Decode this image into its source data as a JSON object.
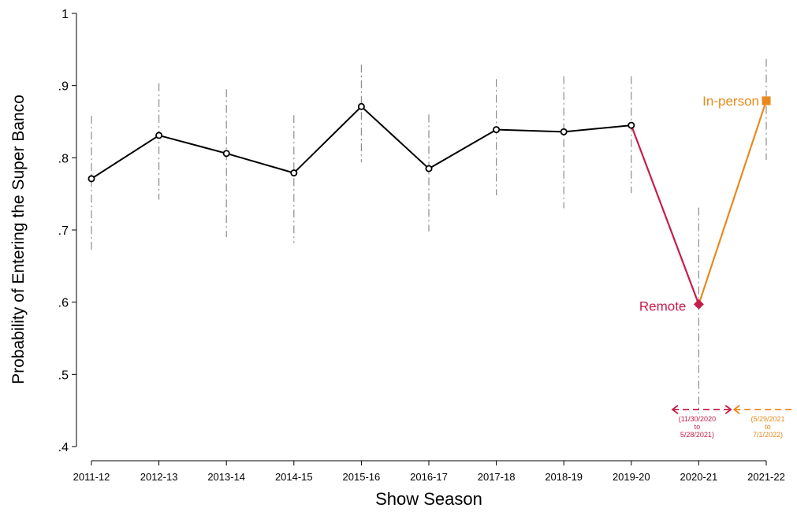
{
  "chart_data": {
    "type": "line",
    "xlabel": "Show Season",
    "ylabel": "Probability of Entering the Super Banco",
    "ylim": [
      0.4,
      1.0
    ],
    "y_ticks": [
      0.4,
      0.5,
      0.6,
      0.7,
      0.8,
      0.9,
      1.0
    ],
    "y_tick_labels": [
      ".4",
      ".5",
      ".6",
      ".7",
      ".8",
      ".9",
      "1"
    ],
    "categories": [
      "2011-12",
      "2012-13",
      "2013-14",
      "2014-15",
      "2015-16",
      "2016-17",
      "2017-18",
      "2018-19",
      "2019-20",
      "2020-21",
      "2021-22"
    ],
    "grid": false,
    "series": [
      {
        "key": "baseline",
        "color": "#000000",
        "marker": "hollow-circle",
        "values": [
          0.771,
          0.831,
          0.806,
          0.779,
          0.871,
          0.785,
          0.839,
          0.836,
          0.845,
          null,
          null
        ]
      },
      {
        "key": "remote",
        "name": "Remote",
        "color": "#c41e4a",
        "marker": "diamond",
        "values": [
          null,
          null,
          null,
          null,
          null,
          null,
          null,
          null,
          null,
          0.597,
          null
        ]
      },
      {
        "key": "inperson",
        "name": "In-person",
        "color": "#e8891d",
        "marker": "square",
        "values": [
          null,
          null,
          null,
          null,
          null,
          null,
          null,
          null,
          null,
          null,
          0.879
        ]
      }
    ],
    "confidence_intervals": [
      {
        "category": "2011-12",
        "low": 0.669,
        "high": 0.858
      },
      {
        "category": "2012-13",
        "low": 0.742,
        "high": 0.903
      },
      {
        "category": "2013-14",
        "low": 0.69,
        "high": 0.895
      },
      {
        "category": "2014-15",
        "low": 0.682,
        "high": 0.859
      },
      {
        "category": "2015-16",
        "low": 0.794,
        "high": 0.929
      },
      {
        "category": "2016-17",
        "low": 0.698,
        "high": 0.86
      },
      {
        "category": "2017-18",
        "low": 0.748,
        "high": 0.909
      },
      {
        "category": "2018-19",
        "low": 0.73,
        "high": 0.913
      },
      {
        "category": "2019-20",
        "low": 0.751,
        "high": 0.913
      },
      {
        "category": "2020-21",
        "low": 0.446,
        "high": 0.731
      },
      {
        "category": "2021-22",
        "low": 0.797,
        "high": 0.937
      }
    ],
    "connectors": [
      {
        "from_category": "2019-20",
        "to_category": "2020-21",
        "from_value": 0.845,
        "to_value": 0.597,
        "color": "#c41e4a"
      },
      {
        "from_category": "2020-21",
        "to_category": "2021-22",
        "from_value": 0.597,
        "to_value": 0.879,
        "color": "#e8891d"
      }
    ],
    "period_annotations": [
      {
        "lines": [
          "(11/30/2020",
          "to",
          "5/28/2021)"
        ],
        "color": "#c41e4a"
      },
      {
        "lines": [
          "(5/29/2021",
          "to",
          "7/1/2022)"
        ],
        "color": "#e8891d"
      }
    ],
    "colors": {
      "axis": "#000000",
      "ci": "#8c8c8c",
      "remote": "#c41e4a",
      "inperson": "#e8891d"
    }
  }
}
